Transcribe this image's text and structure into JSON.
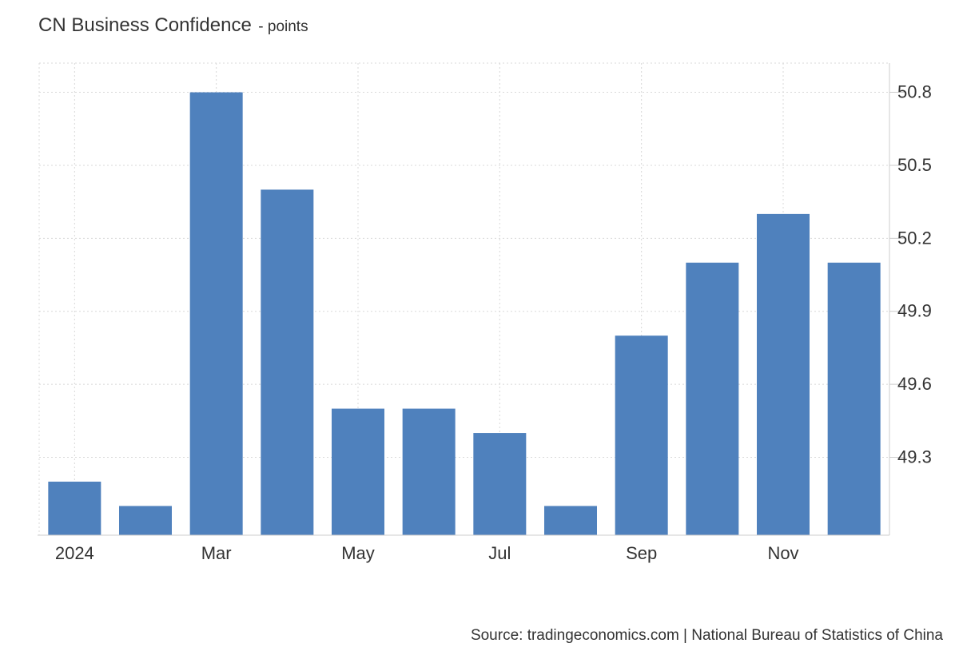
{
  "title": "CN Business Confidence",
  "subtitle": "- points",
  "source": "Source: tradingeconomics.com | National Bureau of Statistics of China",
  "colors": {
    "bar": "#4f81bd",
    "grid": "#d8d8d8",
    "axis": "#cccccc",
    "text": "#333333"
  },
  "chart_data": {
    "type": "bar",
    "x": [
      "2024-01",
      "2024-02",
      "2024-03",
      "2024-04",
      "2024-05",
      "2024-06",
      "2024-07",
      "2024-08",
      "2024-09",
      "2024-10",
      "2024-11",
      "2024-12"
    ],
    "values": [
      49.2,
      49.1,
      50.8,
      50.4,
      49.5,
      49.5,
      49.4,
      49.1,
      49.8,
      50.1,
      50.3,
      50.1
    ],
    "x_tick_labels": [
      "2024",
      "",
      "Mar",
      "",
      "May",
      "",
      "Jul",
      "",
      "Sep",
      "",
      "Nov",
      ""
    ],
    "y_ticks": [
      49.3,
      49.6,
      49.9,
      50.2,
      50.5,
      50.8
    ],
    "y_tick_labels": [
      "49.3",
      "49.6",
      "49.9",
      "50.2",
      "50.5",
      "50.8"
    ],
    "ylim": [
      48.98,
      50.92
    ],
    "y_axis_side": "right",
    "grid": true,
    "legend": "none"
  }
}
